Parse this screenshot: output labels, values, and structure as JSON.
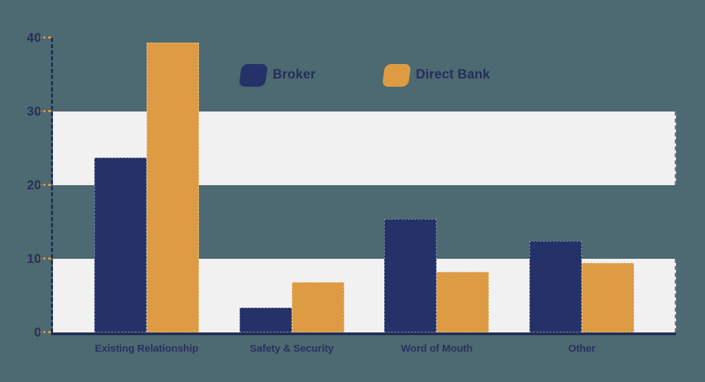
{
  "chart_data": {
    "type": "bar",
    "title": "",
    "xlabel": "",
    "ylabel": "",
    "categories": [
      "Existing Relationship",
      "Safety & Security",
      "Word of Mouth",
      "Other"
    ],
    "series": [
      {
        "name": "Broker",
        "color": "#243269",
        "values": [
          23.7,
          3.4,
          15.4,
          12.4
        ]
      },
      {
        "name": "Direct Bank",
        "color": "#dd9b43",
        "values": [
          39.3,
          6.8,
          8.2,
          9.4
        ]
      }
    ],
    "ylim": [
      0,
      40
    ],
    "yticks": [
      0,
      10,
      20,
      30,
      40
    ],
    "bands": [
      [
        0,
        10
      ],
      [
        20,
        30
      ]
    ],
    "grid": false,
    "legend_position": "top-center",
    "colors": {
      "background": "#4d6971",
      "band": "#f2f1f2",
      "axis": "#232e56",
      "tick_mark": "#dd9b43",
      "text": "#272f58"
    }
  }
}
